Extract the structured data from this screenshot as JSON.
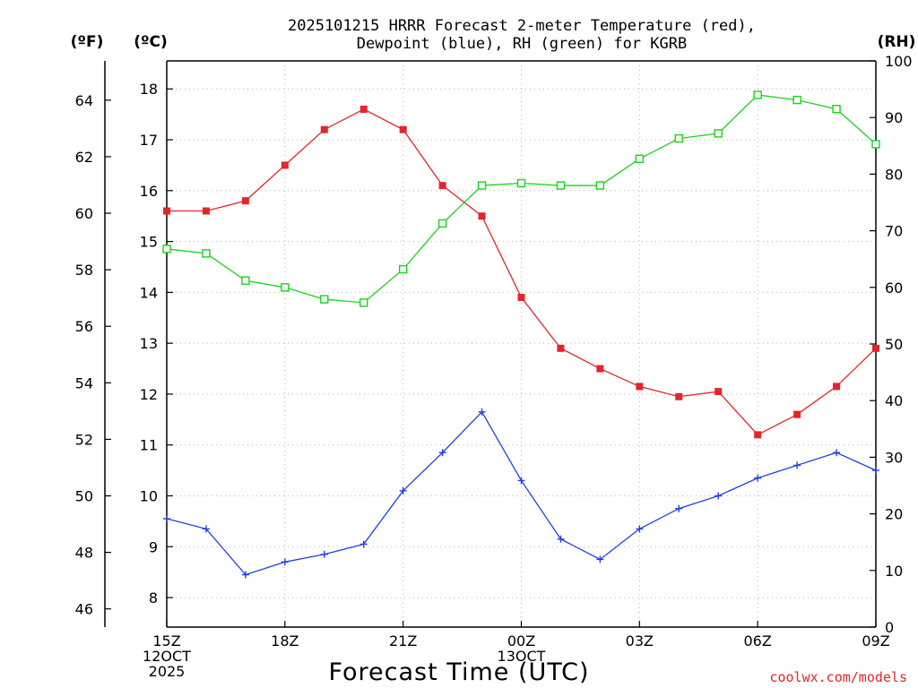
{
  "chart_data": {
    "type": "line",
    "title": [
      "2025101215 HRRR Forecast 2-meter Temperature (red),",
      "Dewpoint (blue), RH (green) for KGRB"
    ],
    "xlabel": "Forecast Time (UTC)",
    "credit": "coolwx.com/models",
    "x": [
      0,
      1,
      2,
      3,
      4,
      5,
      6,
      7,
      8,
      9,
      10,
      11,
      12,
      13,
      14,
      15,
      16,
      17,
      18
    ],
    "xlim": [
      0,
      18
    ],
    "x_ticks": [
      {
        "x": 0,
        "lines": [
          "15Z",
          "12OCT",
          "2025"
        ]
      },
      {
        "x": 3,
        "lines": [
          "18Z"
        ]
      },
      {
        "x": 6,
        "lines": [
          "21Z"
        ]
      },
      {
        "x": 9,
        "lines": [
          "00Z",
          "13OCT"
        ]
      },
      {
        "x": 12,
        "lines": [
          "03Z"
        ]
      },
      {
        "x": 15,
        "lines": [
          "06Z"
        ]
      },
      {
        "x": 18,
        "lines": [
          "09Z"
        ]
      }
    ],
    "axes": {
      "celsius": {
        "label": "(ºC)",
        "ticks": [
          8,
          9,
          10,
          11,
          12,
          13,
          14,
          15,
          16,
          17,
          18
        ],
        "ylim": [
          7.42,
          18.55
        ]
      },
      "fahrenheit": {
        "label": "(ºF)",
        "ticks": [
          46,
          48,
          50,
          52,
          54,
          56,
          58,
          60,
          62,
          64
        ]
      },
      "rh": {
        "label": "(RH)",
        "ticks": [
          0,
          10,
          20,
          30,
          40,
          50,
          60,
          70,
          80,
          90,
          100
        ],
        "ylim": [
          0,
          100
        ]
      }
    },
    "series": [
      {
        "name": "2-meter Temperature",
        "unit": "C",
        "color": "#e2262a",
        "marker": "filled-square",
        "values": [
          15.6,
          15.6,
          15.8,
          16.5,
          17.2,
          17.6,
          17.2,
          16.1,
          15.5,
          13.9,
          12.9,
          12.5,
          12.15,
          11.95,
          12.05,
          11.2,
          11.6,
          12.15,
          12.9
        ]
      },
      {
        "name": "Dewpoint",
        "unit": "C",
        "color": "#2340e0",
        "marker": "plus",
        "values": [
          9.55,
          9.35,
          8.45,
          8.7,
          8.85,
          9.05,
          10.1,
          10.85,
          11.65,
          10.3,
          9.15,
          8.75,
          9.35,
          9.75,
          10.0,
          10.35,
          10.6,
          10.85,
          10.5
        ]
      },
      {
        "name": "RH",
        "unit": "%",
        "color": "#18d418",
        "marker": "open-square",
        "values": [
          66.8,
          66.0,
          61.2,
          60.0,
          57.9,
          57.3,
          63.2,
          71.3,
          78.0,
          78.4,
          78.0,
          78.0,
          82.7,
          86.3,
          87.2,
          94.0,
          93.1,
          91.5,
          85.3
        ]
      }
    ]
  }
}
